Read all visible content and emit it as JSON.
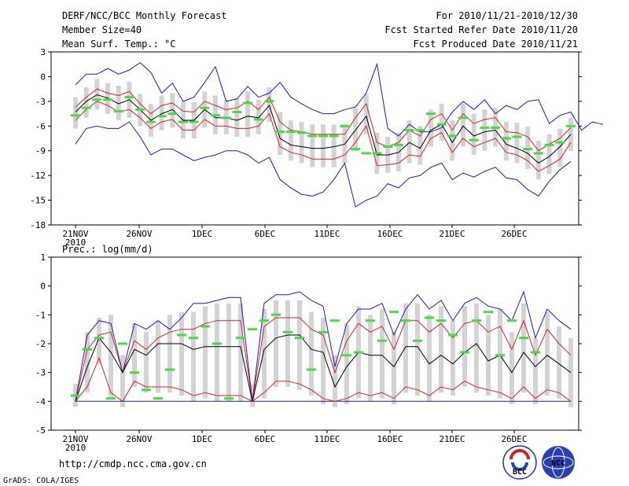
{
  "header": {
    "title": "DERF/NCC/BCC Monthly Forecast",
    "member_size": "Member Size=40",
    "variable": "Mean Surf. Temp.: °C",
    "period": "For 2010/11/21-2010/12/30",
    "fcst_started": "Fcst Started Refer Date 2010/11/20",
    "fcst_produced": "Fcst Produced Date 2010/11/21"
  },
  "footer": {
    "url": "http://cmdp.ncc.cma.gov.cn",
    "credit": "GrADS: COLA/IGES",
    "logo_bcc": "BCC",
    "logo_ncc": "NCC"
  },
  "colors": {
    "box": "#d3d3d3",
    "obs": "#44dd44",
    "mean": "#000000",
    "std": "#dd2222",
    "minmax": "#1a1acc"
  },
  "chart_data": [
    {
      "type": "line",
      "title": "Mean Surf. Temp.: °C",
      "xlabel": "",
      "ylabel": "",
      "ylim": [
        -18,
        3
      ],
      "yticks": [
        3,
        0,
        -3,
        -6,
        -9,
        -12,
        -15,
        -18
      ],
      "x_tick_labels": [
        "21NOV\n2010",
        "26NOV",
        "1DEC",
        "6DEC",
        "11DEC",
        "16DEC",
        "21DEC",
        "26DEC"
      ],
      "x_tick_days": [
        1,
        6,
        11,
        16,
        21,
        26,
        31,
        36
      ],
      "days": 40,
      "series": [
        {
          "name": "Ensemble Max",
          "values": [
            -1,
            0.3,
            0.3,
            1,
            0.3,
            0.8,
            1.7,
            0.5,
            -2,
            -0.8,
            -3,
            -2.5,
            -0.7,
            1.2,
            -3,
            -2.7,
            -1.2,
            -2.5,
            -2,
            -0.7,
            -2.5,
            -3.3,
            -4,
            -4.5,
            -4.5,
            -4,
            -3.7,
            -2,
            1.5,
            -6.3,
            -7.2,
            -5.8,
            -6.7,
            -6.7,
            -6.2,
            -4.3,
            -3,
            -4,
            -2.8,
            -4.5,
            -3.5,
            -4,
            -3,
            -2.8,
            -5.7,
            -4.7,
            -4.3,
            -6.5,
            -5.5,
            -5.8
          ]
        },
        {
          "name": "Mean + 1 SD",
          "values": [
            -3.7,
            -2.5,
            -1.5,
            -2,
            -2.3,
            -1.8,
            -3.3,
            -4.5,
            -3.5,
            -3.2,
            -4.2,
            -4.3,
            -3,
            -3.5,
            -4,
            -3.8,
            -3,
            -4,
            -2.5,
            -5.5,
            -6.5,
            -6.7,
            -7,
            -7,
            -7,
            -7,
            -5,
            -3.3,
            -8,
            -8.5,
            -8,
            -6.5,
            -7.2,
            -5.2,
            -4.5,
            -6.5,
            -4.5,
            -5.7,
            -5.2,
            -5,
            -6.7,
            -6.8,
            -7.3,
            -9,
            -8.2,
            -7.5,
            -6.2
          ]
        },
        {
          "name": "Ensemble Mean",
          "values": [
            -4.3,
            -3,
            -2.2,
            -2.6,
            -3.3,
            -2.8,
            -4,
            -5.3,
            -4.5,
            -4,
            -5.3,
            -5.3,
            -4,
            -5,
            -5,
            -5.3,
            -4.8,
            -5,
            -3.5,
            -7.5,
            -8.3,
            -8.5,
            -8.7,
            -8.7,
            -8.5,
            -8.2,
            -6.5,
            -4.8,
            -9.5,
            -9.5,
            -9.2,
            -8,
            -8.7,
            -6.5,
            -5.8,
            -8,
            -6,
            -7.2,
            -6.7,
            -6.5,
            -8.2,
            -8.7,
            -9.3,
            -10.5,
            -9.7,
            -8.5,
            -7
          ]
        },
        {
          "name": "Mean - 1 SD",
          "values": [
            -5.3,
            -4,
            -3,
            -3.5,
            -4.3,
            -4,
            -5,
            -6.3,
            -5.5,
            -5.2,
            -6.5,
            -6.5,
            -5.2,
            -6,
            -6,
            -6.3,
            -6.3,
            -6,
            -4.5,
            -8.5,
            -9.2,
            -9.5,
            -10,
            -10,
            -10,
            -9.5,
            -8,
            -6,
            -10.8,
            -10.7,
            -10.5,
            -9.5,
            -9.7,
            -7.5,
            -6.8,
            -9.2,
            -7.5,
            -8.5,
            -8,
            -7.5,
            -9.2,
            -9.5,
            -10.2,
            -11.5,
            -10.8,
            -10,
            -8
          ]
        },
        {
          "name": "Ensemble Min",
          "values": [
            -8.2,
            -6.3,
            -6,
            -6.3,
            -6.3,
            -5.5,
            -7.3,
            -9.5,
            -8.8,
            -8.8,
            -9.5,
            -10.2,
            -9.8,
            -9.5,
            -9,
            -9,
            -9.5,
            -10.5,
            -9.8,
            -12.5,
            -13.5,
            -14.3,
            -14.5,
            -14,
            -12.5,
            -10.5,
            -15.8,
            -15,
            -14.5,
            -13,
            -13.5,
            -12.3,
            -12,
            -11,
            -10.5,
            -12.5,
            -11.7,
            -12.2,
            -11.5,
            -11,
            -12.3,
            -12.5,
            -13.7,
            -14.5,
            -12.7,
            -11.3,
            -10.3
          ]
        },
        {
          "name": "Observed",
          "values": [
            -4.7,
            -3.8,
            -2.8,
            -2.8,
            -4.2,
            -2.5,
            -4,
            -5.5,
            -4.8,
            -4.5,
            -5.5,
            -5.5,
            -3.8,
            -4.7,
            -5,
            -4.3,
            -3.2,
            -5.2,
            -3,
            -6.7,
            -6.7,
            -6.8,
            -7.2,
            -7.2,
            -7.2,
            -6,
            -8.8,
            -9.3,
            -9.3,
            -8.5,
            -8.3,
            -6.5,
            -6.5,
            -4.5,
            -5.8,
            -7.2,
            -5,
            -7.7,
            -6.2,
            -6.2,
            -7.5,
            -7.3,
            -8.8,
            -9.3,
            -8.3,
            -8,
            -6
          ]
        }
      ]
    },
    {
      "type": "line",
      "title": "Prec.: log(mm/d)",
      "xlabel": "",
      "ylabel": "",
      "ylim": [
        -5,
        1
      ],
      "yticks": [
        1,
        0,
        -1,
        -2,
        -3,
        -4,
        -5
      ],
      "x_tick_labels": [
        "21NOV\n2010",
        "26NOV",
        "1DEC",
        "6DEC",
        "11DEC",
        "16DEC",
        "21DEC",
        "26DEC"
      ],
      "x_tick_days": [
        1,
        6,
        11,
        16,
        21,
        26,
        31,
        36
      ],
      "days": 40,
      "series": [
        {
          "name": "Ensemble Max",
          "values": [
            -4,
            -1.7,
            -1.2,
            -1.3,
            -3,
            -1.3,
            -1.5,
            -1.2,
            -1.5,
            -1.1,
            -0.6,
            -0.6,
            -0.5,
            -0.4,
            -0.4,
            -4,
            -0.6,
            -0.3,
            -0.3,
            -0.2,
            -0.5,
            -0.7,
            -2.8,
            -1.3,
            -0.8,
            -0.8,
            -0.6,
            -1.7,
            -0.8,
            -0.3,
            -0.8,
            -0.5,
            -1.2,
            -0.6,
            -0.4,
            -0.7,
            -0.8,
            -1.2,
            -0.2,
            -1.8,
            -0.8,
            -1.2,
            -1.5
          ]
        },
        {
          "name": "Mean + 1 SD",
          "values": [
            -4,
            -2.2,
            -1.7,
            -1.6,
            -3,
            -1.9,
            -2.2,
            -1.8,
            -1.6,
            -1.5,
            -1.5,
            -1.3,
            -1.2,
            -1.2,
            -1.2,
            -4,
            -1.4,
            -1.1,
            -1.1,
            -1.1,
            -1.5,
            -1.7,
            -3,
            -1.9,
            -1.3,
            -1.6,
            -1.4,
            -2.2,
            -1.2,
            -1.2,
            -1.6,
            -1.3,
            -1.8,
            -1.3,
            -1.2,
            -1.6,
            -1.4,
            -2.2,
            -1.2,
            -2.4,
            -1.5,
            -2,
            -2.4
          ]
        },
        {
          "name": "Ensemble Mean",
          "values": [
            -4,
            -2.8,
            -1.8,
            -2.3,
            -3,
            -2.2,
            -2.4,
            -2,
            -2,
            -2,
            -2.2,
            -2.1,
            -2.1,
            -2.1,
            -2.1,
            -4,
            -2.2,
            -1.8,
            -1.7,
            -1.7,
            -2.2,
            -2.3,
            -3.5,
            -2.8,
            -2.3,
            -2.4,
            -2.4,
            -2.8,
            -2.1,
            -2.1,
            -2.7,
            -2.4,
            -2.7,
            -2.3,
            -2,
            -2.6,
            -2.4,
            -3,
            -2.3,
            -2.8,
            -2.4,
            -2.7,
            -3
          ]
        },
        {
          "name": "Mean - 1 SD",
          "values": [
            -4,
            -3.5,
            -2.5,
            -3.7,
            -4,
            -3.3,
            -3.5,
            -3.5,
            -3.5,
            -3.6,
            -3.8,
            -3.7,
            -3.8,
            -3.8,
            -3.8,
            -4,
            -3.7,
            -3.3,
            -3.3,
            -3.4,
            -3.6,
            -3.9,
            -4,
            -3.9,
            -3.7,
            -3.8,
            -3.7,
            -3.9,
            -3.5,
            -3.6,
            -3.8,
            -3.5,
            -3.6,
            -3.3,
            -3.5,
            -3.6,
            -3.7,
            -3.9,
            -3.5,
            -3.9,
            -3.6,
            -3.7,
            -4
          ]
        },
        {
          "name": "Ensemble Min",
          "values": [
            -4,
            -4,
            -4,
            -4,
            -4,
            -4,
            -4,
            -4,
            -4,
            -4,
            -4,
            -4,
            -4,
            -4,
            -4,
            -4,
            -4,
            -4,
            -4,
            -4,
            -4,
            -4,
            -4,
            -4,
            -4,
            -4,
            -4,
            -4,
            -4,
            -4,
            -4,
            -4,
            -4,
            -4,
            -4,
            -4,
            -4,
            -4,
            -4,
            -4,
            -4,
            -4,
            -4
          ]
        },
        {
          "name": "Observed",
          "values": [
            -3.8,
            -2.2,
            -1.8,
            -3.9,
            -2,
            -3,
            -3.6,
            -3.9,
            -2.9,
            -1.7,
            -1.8,
            -1.4,
            -2,
            -3.9,
            -1.8,
            -1.5,
            -1.2,
            -1,
            -1.6,
            -1.8,
            -2.9,
            -1.6,
            -1.2,
            -2.4,
            -2.3,
            -1.2,
            -1.9,
            -0.9,
            -1.2,
            -1.9,
            -1.1,
            -1.2,
            -1.7,
            -2.3,
            -1.2,
            -0.9,
            -2.4,
            -1.2,
            -1.8,
            -2.3
          ]
        }
      ]
    }
  ]
}
